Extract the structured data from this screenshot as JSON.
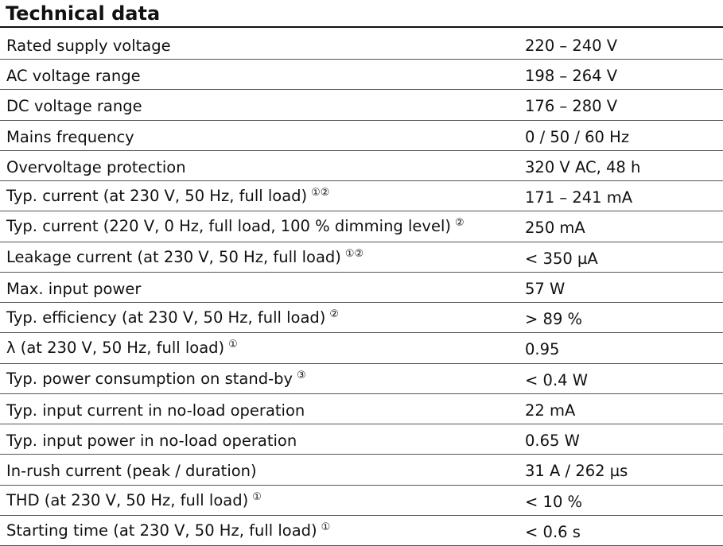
{
  "title": "Technical data",
  "table": {
    "rows": [
      {
        "label": "Rated supply voltage",
        "value": "220 – 240 V"
      },
      {
        "label": "AC voltage range",
        "value": "198 – 264 V"
      },
      {
        "label": "DC voltage range",
        "value": "176 – 280 V"
      },
      {
        "label": "Mains frequency",
        "value": "0 / 50 / 60 Hz"
      },
      {
        "label": "Overvoltage protection",
        "value": "320 V AC, 48 h"
      },
      {
        "label": "Typ. current (at 230 V, 50 Hz, full load)",
        "notes": "①②",
        "value": "171 – 241 mA"
      },
      {
        "label": "Typ. current (220 V, 0 Hz, full load, 100 % dimming level)",
        "notes": "②",
        "value": "250 mA"
      },
      {
        "label": "Leakage current (at 230 V, 50 Hz, full load)",
        "notes": "①②",
        "value": "< 350 µA"
      },
      {
        "label": "Max. input power",
        "value": "57 W"
      },
      {
        "label": "Typ. efficiency (at 230 V, 50 Hz, full load)",
        "notes": "②",
        "value": "> 89 %"
      },
      {
        "label": "λ (at 230 V, 50 Hz, full load)",
        "notes": "①",
        "value": "0.95"
      },
      {
        "label": "Typ. power consumption on stand-by",
        "notes": "③",
        "value": "< 0.4 W"
      },
      {
        "label": "Typ. input current in no-load operation",
        "value": "22 mA"
      },
      {
        "label": "Typ. input power in no-load operation",
        "value": "0.65 W"
      },
      {
        "label": "In-rush current (peak / duration)",
        "value": "31 A / 262 µs"
      },
      {
        "label": "THD (at 230 V, 50 Hz, full load)",
        "notes": "①",
        "value": "< 10 %"
      },
      {
        "label": "Starting time (at 230 V, 50 Hz, full load)",
        "notes": "①",
        "value": "< 0.6 s"
      }
    ]
  }
}
